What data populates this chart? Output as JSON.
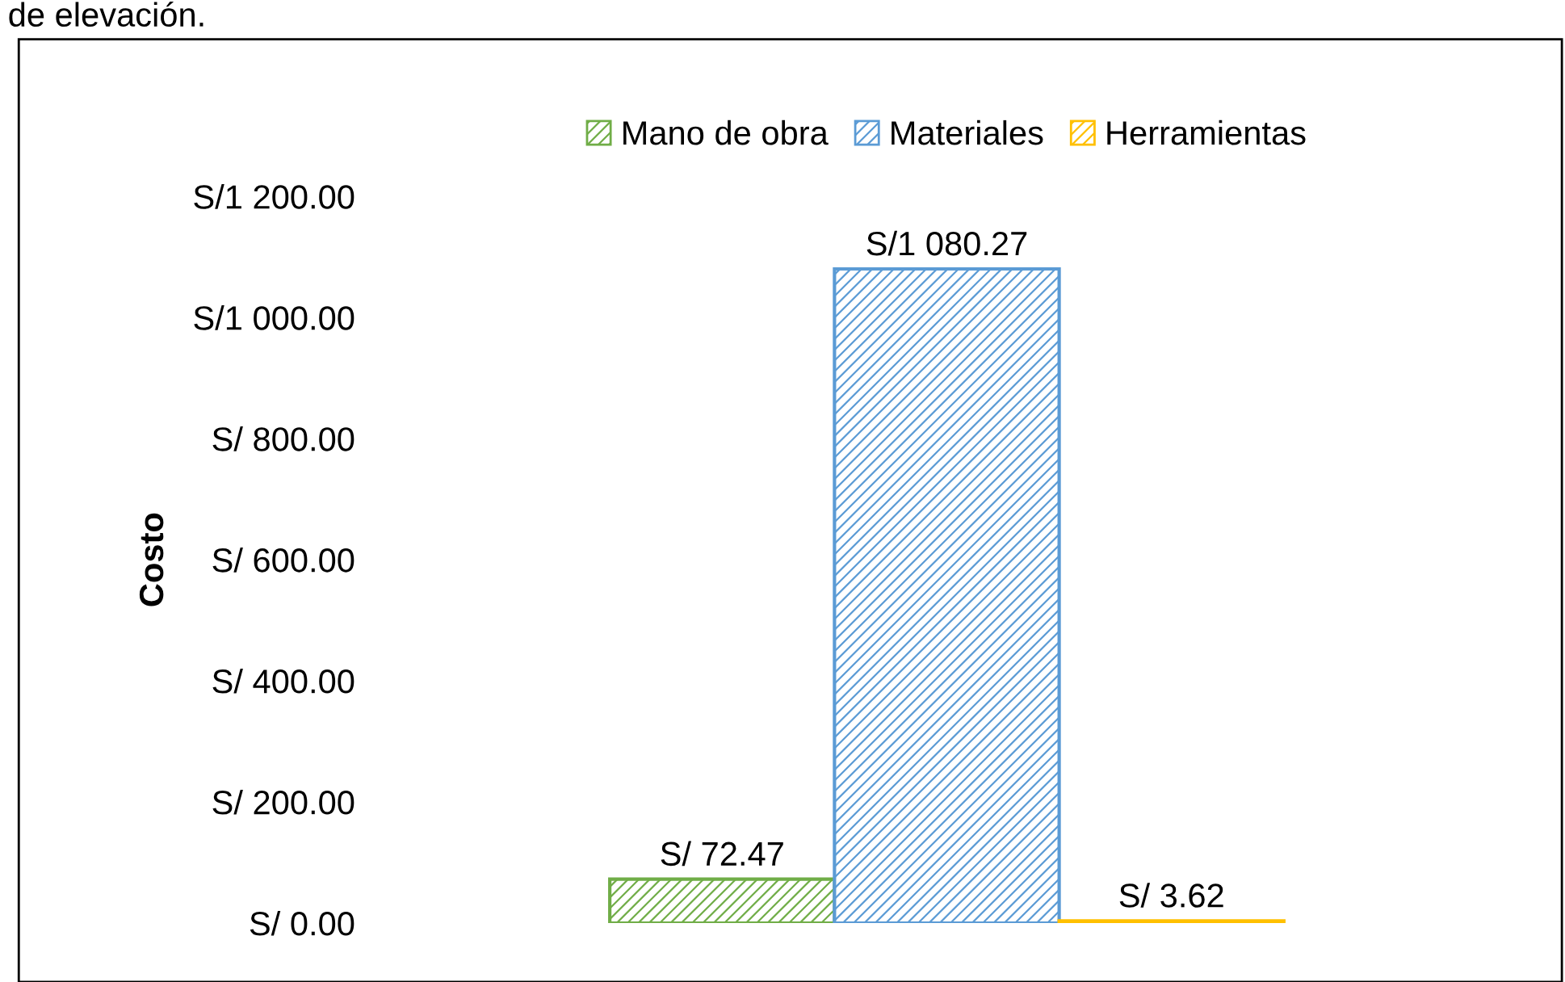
{
  "chart_data": {
    "type": "bar",
    "ylabel": "Costo",
    "annotations": [
      "de elevación."
    ],
    "categories": [
      null
    ],
    "series": [
      {
        "name": "Mano de obra",
        "color": "#70ad47",
        "values": [
          72.47
        ],
        "value_labels": [
          "S/ 72.47"
        ]
      },
      {
        "name": "Materiales",
        "color": "#5b9bd5",
        "values": [
          1080.27
        ],
        "value_labels": [
          "S/1 080.27"
        ]
      },
      {
        "name": "Herramientas",
        "color": "#ffc000",
        "values": [
          3.62
        ],
        "value_labels": [
          "S/ 3.62"
        ]
      }
    ],
    "ylim": [
      0,
      1200
    ],
    "yticks": [
      {
        "value": 0,
        "label": "S/ 0.00"
      },
      {
        "value": 200,
        "label": "S/ 200.00"
      },
      {
        "value": 400,
        "label": "S/ 400.00"
      },
      {
        "value": 600,
        "label": "S/ 600.00"
      },
      {
        "value": 800,
        "label": "S/ 800.00"
      },
      {
        "value": 1000,
        "label": "S/1 000.00"
      },
      {
        "value": 1200,
        "label": "S/1 200.00"
      }
    ],
    "grid": false,
    "legend": "top"
  }
}
